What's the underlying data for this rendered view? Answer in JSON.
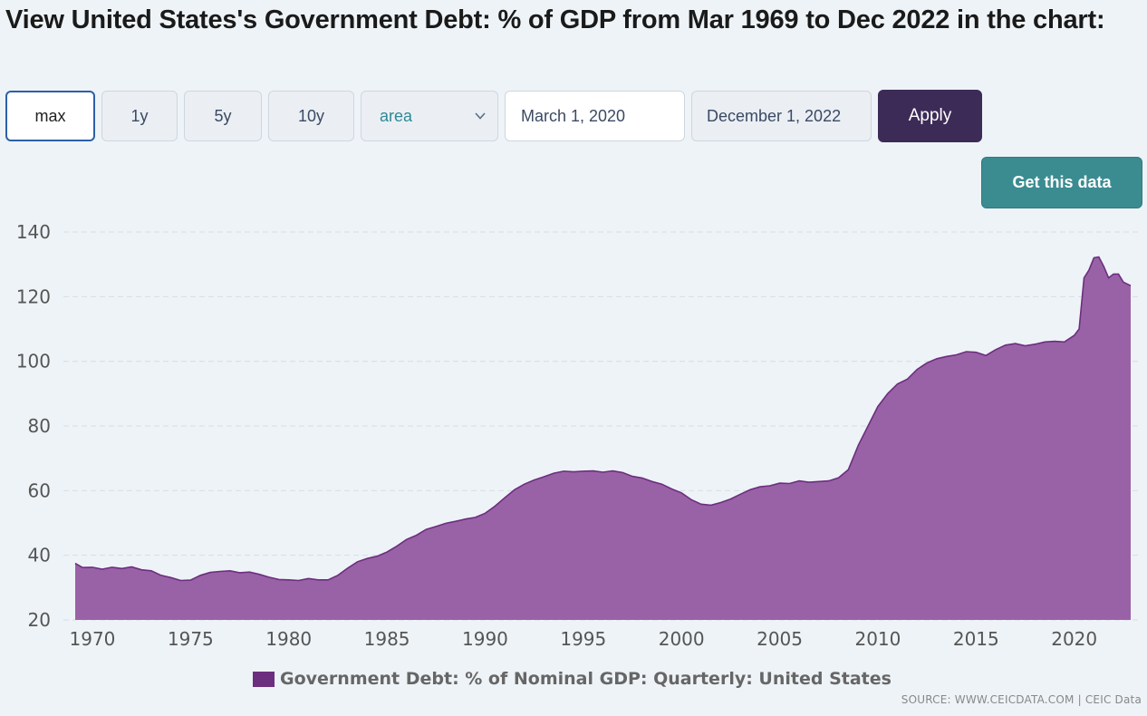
{
  "page": {
    "title": "View United States's Government Debt: % of GDP from Mar 1969 to Dec 2022 in the chart:"
  },
  "controls": {
    "range_buttons": [
      "max",
      "1y",
      "5y",
      "10y"
    ],
    "active_range": "max",
    "chart_type_value": "area",
    "date_from": "March 1, 2020",
    "date_to": "December 1, 2022",
    "apply_label": "Apply",
    "get_data_label": "Get this data"
  },
  "colors": {
    "series_fill": "#9a62a6",
    "series_line": "#6c2e7f",
    "apply_bg": "#3d2b57",
    "get_data_bg": "#3a8c91"
  },
  "legend": {
    "label": "Government Debt: % of Nominal GDP: Quarterly: United States"
  },
  "footer": {
    "source": "SOURCE: WWW.CEICDATA.COM | CEIC Data"
  },
  "chart_data": {
    "type": "area",
    "title": "",
    "xlabel": "",
    "ylabel": "",
    "ylim": [
      20,
      140
    ],
    "yticks": [
      20,
      40,
      60,
      80,
      100,
      120,
      140
    ],
    "xlim": [
      1969.125,
      2022.875
    ],
    "xticks": [
      1970,
      1975,
      1980,
      1985,
      1990,
      1995,
      2000,
      2005,
      2010,
      2015,
      2020
    ],
    "grid": true,
    "legend_position": "bottom",
    "series": [
      {
        "name": "Government Debt: % of Nominal GDP: Quarterly: United States",
        "points": [
          [
            1969.125,
            37.5
          ],
          [
            1969.5,
            36.2
          ],
          [
            1970.0,
            36.3
          ],
          [
            1970.5,
            35.7
          ],
          [
            1971.0,
            36.3
          ],
          [
            1971.5,
            35.9
          ],
          [
            1972.0,
            36.4
          ],
          [
            1972.5,
            35.5
          ],
          [
            1973.0,
            35.2
          ],
          [
            1973.5,
            33.8
          ],
          [
            1974.0,
            33.1
          ],
          [
            1974.5,
            32.2
          ],
          [
            1975.0,
            32.3
          ],
          [
            1975.5,
            33.8
          ],
          [
            1976.0,
            34.7
          ],
          [
            1976.5,
            35.0
          ],
          [
            1977.0,
            35.2
          ],
          [
            1977.5,
            34.6
          ],
          [
            1978.0,
            34.8
          ],
          [
            1978.5,
            34.1
          ],
          [
            1979.0,
            33.2
          ],
          [
            1979.5,
            32.5
          ],
          [
            1980.0,
            32.4
          ],
          [
            1980.5,
            32.2
          ],
          [
            1981.0,
            32.8
          ],
          [
            1981.5,
            32.4
          ],
          [
            1982.0,
            32.4
          ],
          [
            1982.5,
            33.8
          ],
          [
            1983.0,
            36.0
          ],
          [
            1983.5,
            38.0
          ],
          [
            1984.0,
            39.0
          ],
          [
            1984.5,
            39.7
          ],
          [
            1985.0,
            41.0
          ],
          [
            1985.5,
            42.8
          ],
          [
            1986.0,
            44.9
          ],
          [
            1986.5,
            46.2
          ],
          [
            1987.0,
            48.0
          ],
          [
            1987.5,
            48.9
          ],
          [
            1988.0,
            49.9
          ],
          [
            1988.5,
            50.5
          ],
          [
            1989.0,
            51.2
          ],
          [
            1989.5,
            51.7
          ],
          [
            1990.0,
            53.0
          ],
          [
            1990.5,
            55.2
          ],
          [
            1991.0,
            57.8
          ],
          [
            1991.5,
            60.3
          ],
          [
            1992.0,
            62.0
          ],
          [
            1992.5,
            63.3
          ],
          [
            1993.0,
            64.3
          ],
          [
            1993.5,
            65.4
          ],
          [
            1994.0,
            66.0
          ],
          [
            1994.5,
            65.8
          ],
          [
            1995.0,
            66.0
          ],
          [
            1995.5,
            66.1
          ],
          [
            1996.0,
            65.7
          ],
          [
            1996.5,
            66.1
          ],
          [
            1997.0,
            65.6
          ],
          [
            1997.5,
            64.4
          ],
          [
            1998.0,
            63.9
          ],
          [
            1998.5,
            62.8
          ],
          [
            1999.0,
            62.0
          ],
          [
            1999.5,
            60.5
          ],
          [
            2000.0,
            59.3
          ],
          [
            2000.5,
            57.2
          ],
          [
            2001.0,
            55.8
          ],
          [
            2001.5,
            55.5
          ],
          [
            2002.0,
            56.3
          ],
          [
            2002.5,
            57.4
          ],
          [
            2003.0,
            58.9
          ],
          [
            2003.5,
            60.3
          ],
          [
            2004.0,
            61.2
          ],
          [
            2004.5,
            61.5
          ],
          [
            2005.0,
            62.3
          ],
          [
            2005.5,
            62.2
          ],
          [
            2006.0,
            63.0
          ],
          [
            2006.5,
            62.6
          ],
          [
            2007.0,
            62.8
          ],
          [
            2007.5,
            63.0
          ],
          [
            2008.0,
            64.0
          ],
          [
            2008.5,
            66.5
          ],
          [
            2009.0,
            74.0
          ],
          [
            2009.5,
            80.0
          ],
          [
            2010.0,
            86.0
          ],
          [
            2010.5,
            90.0
          ],
          [
            2011.0,
            93.0
          ],
          [
            2011.5,
            94.5
          ],
          [
            2012.0,
            97.5
          ],
          [
            2012.5,
            99.5
          ],
          [
            2013.0,
            100.8
          ],
          [
            2013.5,
            101.5
          ],
          [
            2014.0,
            102.0
          ],
          [
            2014.5,
            103.0
          ],
          [
            2015.0,
            102.8
          ],
          [
            2015.5,
            101.8
          ],
          [
            2016.0,
            103.6
          ],
          [
            2016.5,
            105.0
          ],
          [
            2017.0,
            105.5
          ],
          [
            2017.5,
            104.8
          ],
          [
            2018.0,
            105.3
          ],
          [
            2018.5,
            106.0
          ],
          [
            2019.0,
            106.2
          ],
          [
            2019.5,
            106.0
          ],
          [
            2020.0,
            108.0
          ],
          [
            2020.25,
            110.0
          ],
          [
            2020.5,
            125.8
          ],
          [
            2020.75,
            128.2
          ],
          [
            2021.0,
            132.0
          ],
          [
            2021.25,
            132.3
          ],
          [
            2021.5,
            129.4
          ],
          [
            2021.75,
            125.8
          ],
          [
            2022.0,
            127.0
          ],
          [
            2022.25,
            127.0
          ],
          [
            2022.5,
            124.5
          ],
          [
            2022.875,
            123.4
          ]
        ]
      }
    ]
  }
}
